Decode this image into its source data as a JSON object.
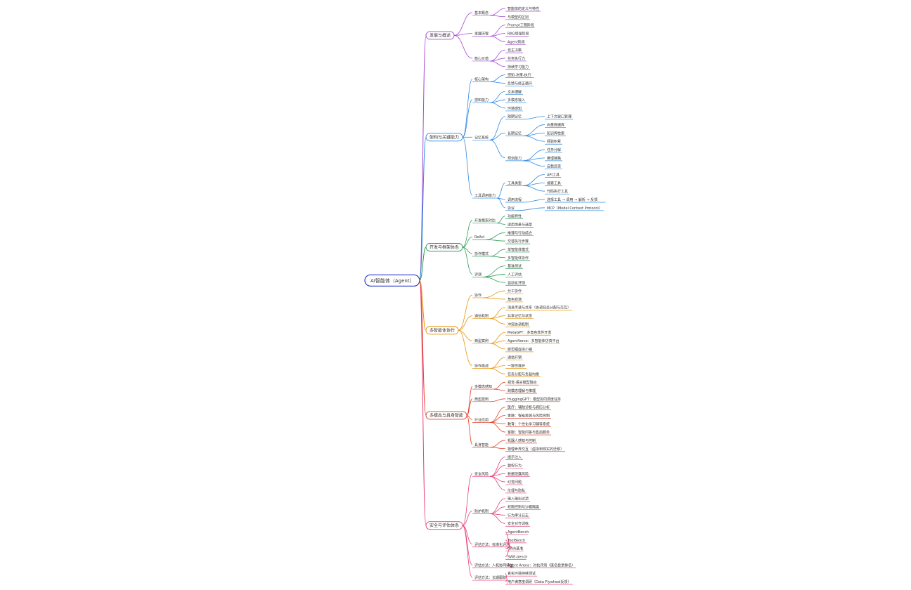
{
  "root": {
    "label": "AI智能体（Agent）",
    "color": "#2b3ec9"
  },
  "branches": [
    {
      "label": "发展与概述",
      "color": "#a84bd6",
      "children": [
        {
          "label": "基本概念",
          "children": [
            {
              "label": "智能体的定义与特性"
            },
            {
              "label": "与模型的区别"
            }
          ]
        },
        {
          "label": "发展历程",
          "children": [
            {
              "label": "Prompt工程阶段"
            },
            {
              "label": "RAG增强阶段"
            },
            {
              "label": "Agent阶段"
            }
          ]
        },
        {
          "label": "核心价值",
          "children": [
            {
              "label": "自主决策"
            },
            {
              "label": "任务执行力"
            },
            {
              "label": "持续学习能力"
            }
          ]
        }
      ]
    },
    {
      "label": "架构与关键能力",
      "color": "#2f8be0",
      "children": [
        {
          "label": "核心架构",
          "children": [
            {
              "label": "感知-决策-执行"
            },
            {
              "label": "反馈与修正循环"
            }
          ]
        },
        {
          "label": "感知能力",
          "children": [
            {
              "label": "文本理解"
            },
            {
              "label": "多模态输入"
            },
            {
              "label": "环境感知"
            }
          ]
        },
        {
          "label": "记忆系统",
          "children": [
            {
              "label": "短期记忆",
              "children": [
                {
                  "label": "上下文窗口管理"
                }
              ]
            },
            {
              "label": "长期记忆",
              "children": [
                {
                  "label": "向量数据库"
                },
                {
                  "label": "知识库检索"
                },
                {
                  "label": "经验积累"
                }
              ]
            },
            {
              "label": "规划能力",
              "children": [
                {
                  "label": "任务分解"
                },
                {
                  "label": "推理链路"
                },
                {
                  "label": "自我反思"
                }
              ]
            }
          ]
        },
        {
          "label": "工具调用能力",
          "children": [
            {
              "label": "工具类型",
              "children": [
                {
                  "label": "API工具"
                },
                {
                  "label": "搜索工具"
                },
                {
                  "label": "代码执行工具"
                }
              ]
            },
            {
              "label": "调用流程",
              "children": [
                {
                  "label": "选择工具 → 调用 → 解析 → 反馈"
                }
              ]
            },
            {
              "label": "协议",
              "children": [
                {
                  "label": "MCP（Model Context Protocol）"
                }
              ]
            }
          ]
        }
      ]
    },
    {
      "label": "开发与框架体系",
      "color": "#2e9e57",
      "children": [
        {
          "label": "开发框架对比",
          "children": [
            {
              "label": "功能特性"
            },
            {
              "label": "适用场景与选型"
            }
          ]
        },
        {
          "label": "ReAct",
          "children": [
            {
              "label": "推理与行动结合"
            },
            {
              "label": "交替执行步骤"
            }
          ]
        },
        {
          "label": "协作模式",
          "children": [
            {
              "label": "单智能体模式"
            },
            {
              "label": "多智能体协作"
            }
          ]
        },
        {
          "label": "评测",
          "children": [
            {
              "label": "基准测试"
            },
            {
              "label": "人工评估"
            },
            {
              "label": "自动化评测"
            }
          ]
        }
      ]
    },
    {
      "label": "多智能体协作",
      "color": "#e8960c",
      "children": [
        {
          "label": "协作",
          "children": [
            {
              "label": "分工协作"
            },
            {
              "label": "角色扮演"
            }
          ]
        },
        {
          "label": "通信机制",
          "children": [
            {
              "label": "消息传递与共享（协调任务分配与交互）"
            },
            {
              "label": "共享记忆与状态"
            },
            {
              "label": "冲突协调机制"
            }
          ]
        },
        {
          "label": "典型案例",
          "children": [
            {
              "label": "MetaGPT：多角色软件开发"
            },
            {
              "label": "AgentVerse：多智能体仿真平台"
            },
            {
              "label": "斯坦福虚拟小镇"
            }
          ]
        },
        {
          "label": "协作挑战",
          "children": [
            {
              "label": "通信开销"
            },
            {
              "label": "一致性维护"
            },
            {
              "label": "任务分配与负载均衡"
            }
          ]
        }
      ]
    },
    {
      "label": "多模态与具身智能",
      "color": "#e0452b",
      "children": [
        {
          "label": "多模态感知",
          "children": [
            {
              "label": "视觉-语言模型融合"
            },
            {
              "label": "跨模态理解与推理"
            }
          ]
        },
        {
          "label": "典型案例",
          "children": [
            {
              "label": "HuggingGPT：模型协同调度任务"
            }
          ]
        },
        {
          "label": "行业应用",
          "children": [
            {
              "label": "医疗：辅助诊断与病历分析"
            },
            {
              "label": "金融：智能投顾与风险控制"
            },
            {
              "label": "教育：个性化学习辅导系统"
            },
            {
              "label": "客服：智能问答与售后服务"
            }
          ]
        },
        {
          "label": "具身智能",
          "children": [
            {
              "label": "机器人感知与控制"
            },
            {
              "label": "物理世界交互（虚拟到现实的迁移）"
            }
          ]
        }
      ]
    },
    {
      "label": "安全与评估体系",
      "color": "#e8417a",
      "children": [
        {
          "label": "安全风险",
          "children": [
            {
              "label": "提示注入"
            },
            {
              "label": "越权行为"
            },
            {
              "label": "数据泄露风险"
            },
            {
              "label": "幻觉问题"
            },
            {
              "label": "伦理与隐私"
            }
          ]
        },
        {
          "label": "防护机制",
          "children": [
            {
              "label": "输入输出过滤"
            },
            {
              "label": "权限控制与沙箱隔离"
            },
            {
              "label": "行为审计日志"
            },
            {
              "label": "安全对齐训练"
            }
          ]
        },
        {
          "label": "评估方法：标准化评测",
          "children": [
            {
              "label": "AgentBench"
            },
            {
              "label": "ToolBench"
            },
            {
              "label": "GAIA基准"
            },
            {
              "label": "SWE-bench"
            }
          ]
        },
        {
          "label": "评估方法：人机协同评估",
          "children": [
            {
              "label": "Agent Arena：对抗评测（匿名投票排名）"
            }
          ]
        },
        {
          "label": "评估方法：长期跟踪",
          "children": [
            {
              "label": "真实环境持续测试"
            },
            {
              "label": "用户满意度调研（Data Flywheel反馈）"
            }
          ]
        }
      ]
    }
  ]
}
